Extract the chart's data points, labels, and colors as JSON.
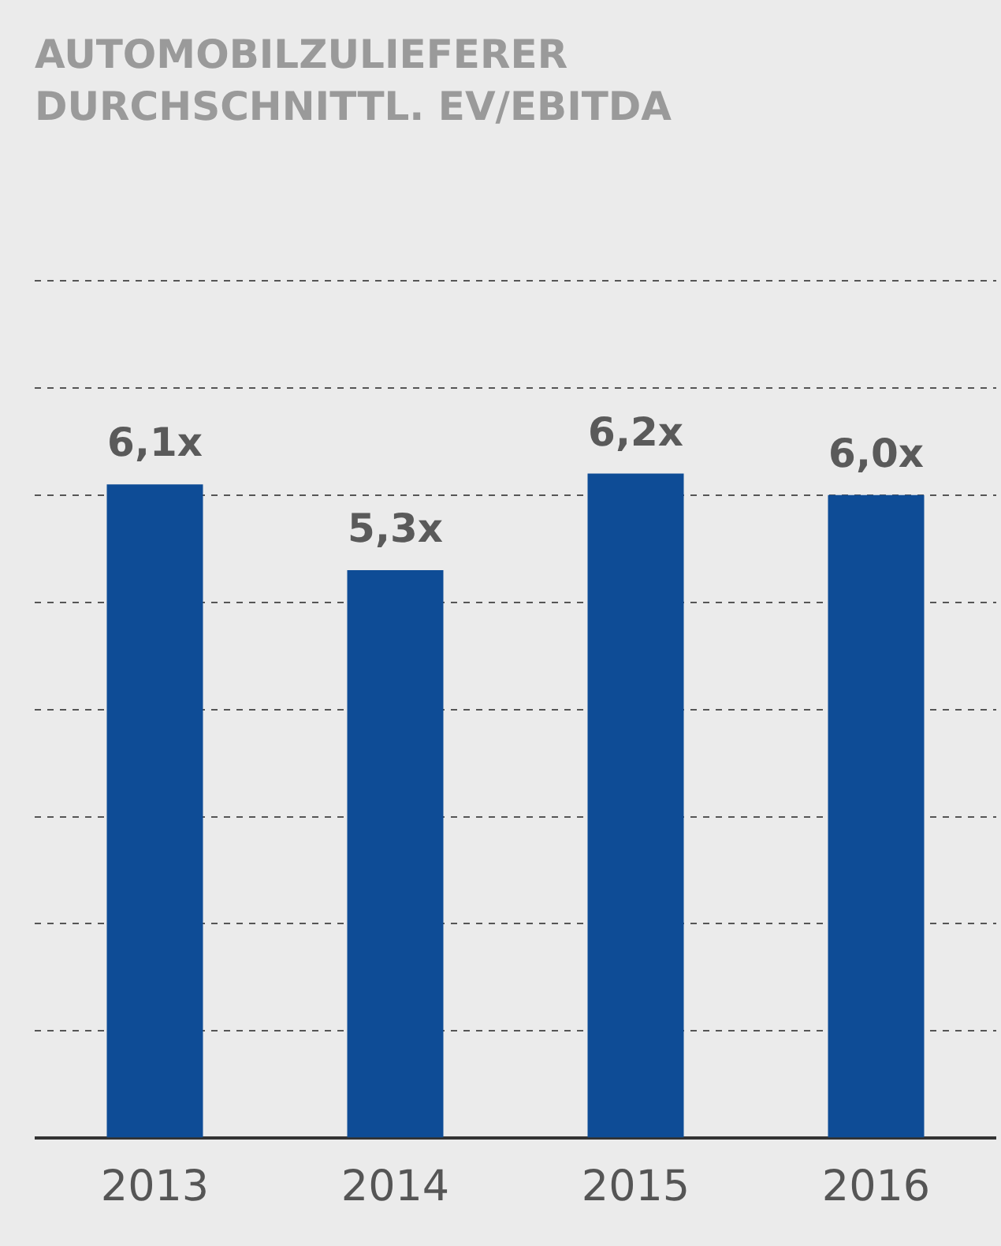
{
  "chart_data": {
    "type": "bar",
    "title": "AUTOMOBILZULIEFERER",
    "subtitle": "DURCHSCHNITTL. EV/EBITDA",
    "categories": [
      "2013",
      "2014",
      "2015",
      "2016"
    ],
    "values": [
      6.1,
      5.3,
      6.2,
      6.0
    ],
    "value_labels": [
      "6,1x",
      "5,3x",
      "6,2x",
      "6,0x"
    ],
    "color": "#0e4c96",
    "ylim": [
      0,
      8
    ],
    "yticks": [
      {
        "value": 0,
        "label": null
      },
      {
        "value": 1,
        "label": null
      },
      {
        "value": 2,
        "label": null
      },
      {
        "value": 3,
        "label": null
      },
      {
        "value": 4,
        "label": null
      },
      {
        "value": 5,
        "label": null
      },
      {
        "value": 6,
        "label": null
      },
      {
        "value": 7,
        "label": null
      },
      {
        "value": 8,
        "label": null
      }
    ],
    "grid": "y",
    "tick_labels": "x"
  }
}
